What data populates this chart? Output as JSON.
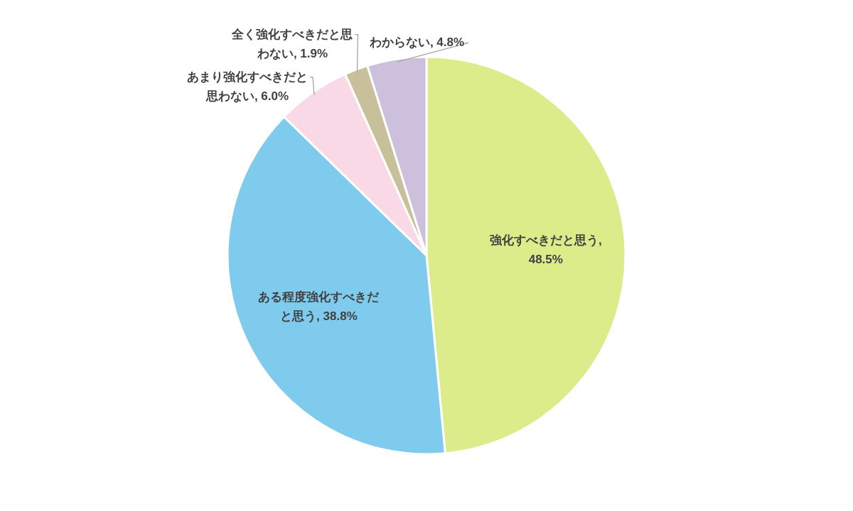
{
  "chart_data": {
    "type": "pie",
    "categories": [
      "強化すべきだと思う",
      "ある程度強化すべきだと思う",
      "あまり強化すべきだと思わない",
      "全く強化すべきだと思わない",
      "わからない"
    ],
    "values": [
      48.5,
      38.8,
      6.0,
      1.9,
      4.8
    ],
    "value_labels": [
      ", 48.5%",
      ", 38.8%",
      ", 6.0%",
      ", 1.9%",
      ", 4.8%"
    ],
    "colors": [
      "#dcec8a",
      "#7ecbee",
      "#f9d9e6",
      "#c8c09a",
      "#cdc0dc"
    ]
  }
}
